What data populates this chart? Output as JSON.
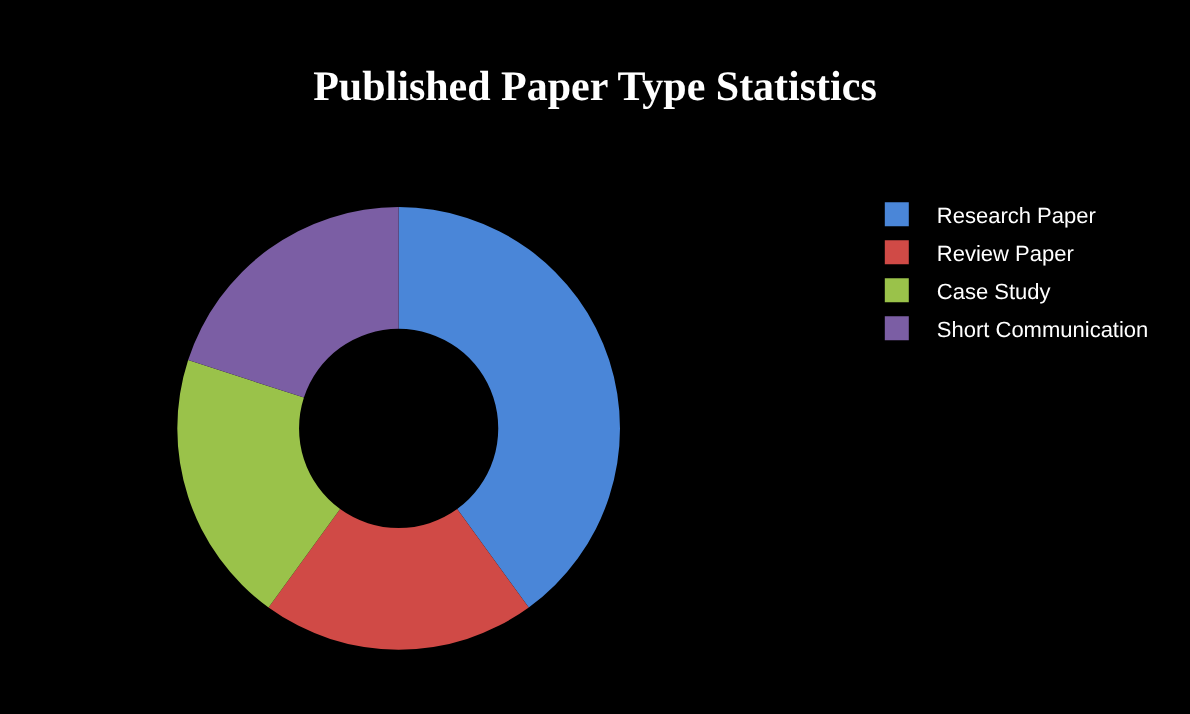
{
  "chart_data": {
    "type": "donut",
    "title": "Published Paper Type Statistics",
    "categories": [
      "Research Paper",
      "Review Paper",
      "Case Study",
      "Short Communication"
    ],
    "values": [
      40,
      20,
      20,
      20
    ],
    "colors": [
      "#4a86d8",
      "#d04a46",
      "#9ac24a",
      "#7b5ea4"
    ],
    "legend": "right"
  }
}
